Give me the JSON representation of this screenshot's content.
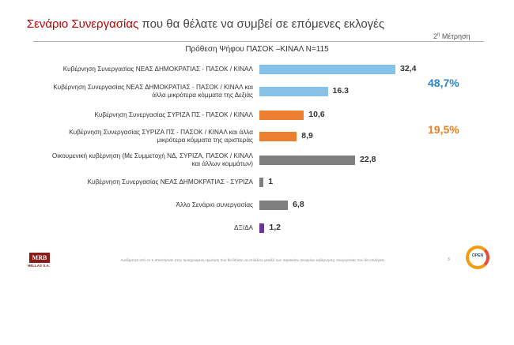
{
  "title": {
    "highlight": "Σενάριο Συνεργασίας",
    "rest": " που θα θέλατε να συμβεί σε επόμενες εκλογές"
  },
  "badge": {
    "prefix": "2",
    "sup": "η",
    "suffix": " Μέτρηση"
  },
  "subtitle": "Πρόθεση Ψήφου ΠΑΣΟΚ –ΚΙΝΑΛ Ν=115",
  "colors": {
    "blue": "#85c1e9",
    "orange": "#ed7d31",
    "gray": "#7f7f7f",
    "purple": "#7030a0",
    "accent_blue": "#2e86c1",
    "accent_orange": "#e67e22"
  },
  "chart_data": {
    "type": "bar",
    "orientation": "horizontal",
    "title": "Σενάριο Συνεργασίας που θα θέλατε να συμβεί σε επόμενες εκλογές",
    "subtitle": "Πρόθεση Ψήφου ΠΑΣΟΚ –ΚΙΝΑΛ Ν=115",
    "unit": "%",
    "xlim": [
      0,
      32.4
    ],
    "categories": [
      [
        "Κυβέρνηση Συνεργασίας ΝΕΑΣ ΔΗΜΟΚΡΑΤΙΑΣ - ΠΑΣΟΚ / ΚΙΝΑΛ"
      ],
      [
        "Κυβέρνηση Συνεργασίας ΝΕΑΣ ΔΗΜΟΚΡΑΤΙΑΣ - ΠΑΣΟΚ / ΚΙΝΑΛ και",
        "άλλα μικρότερα κόμματα της Δεξιάς"
      ],
      [
        "Κυβέρνηση Συνεργασίας ΣΥΡΙΖΑ ΠΣ - ΠΑΣΟΚ / ΚΙΝΑΛ"
      ],
      [
        "Κυβέρνηση Συνεργασίας ΣΥΡΙΖΑ ΠΣ - ΠΑΣΟΚ / ΚΙΝΑΛ και άλλα",
        "μικρότερα κόμματα της αριστεράς"
      ],
      [
        "Οικουμενική κυβέρνηση (Με Συμμετοχή ΝΔ, ΣΥΡΙΖΑ, ΠΑΣΟΚ / ΚΙΝΑΛ",
        "και άλλων κομμάτων)"
      ],
      [
        "Κυβέρνηση Συνεργασίας ΝΕΑΣ ΔΗΜΟΚΡΑΤΙΑΣ - ΣΥΡΙΖΑ"
      ],
      [
        "Άλλο Σενάριο συνεργασίας"
      ],
      [
        "ΔΞ/ΔΑ"
      ]
    ],
    "values": [
      32.4,
      16.3,
      10.6,
      8.9,
      22.8,
      1,
      6.8,
      1.2
    ],
    "value_labels": [
      "32,4",
      "16.3",
      "10,6",
      "8,9",
      "22,8",
      "1",
      "6,8",
      "1,2"
    ],
    "bar_colors": [
      "blue",
      "blue",
      "orange",
      "orange",
      "gray",
      "gray",
      "gray",
      "purple"
    ],
    "annotations": [
      {
        "text": "48,7%",
        "group": "blue"
      },
      {
        "text": "19,5%",
        "group": "orange"
      }
    ]
  },
  "footer": "Ανεξάρτητα από το τι απαντήσατε στην προηγούμενη ερώτηση πού θα θέλατε να επιλέξετε μεταξύ των παρακάτω σεναρίων κυβέρνησης συνεργασίας που θα επιλέγατε.",
  "page_number": "3",
  "logos": {
    "left": "MRB",
    "left_sub": "HELLAS S.A.",
    "right": "OPEN"
  }
}
